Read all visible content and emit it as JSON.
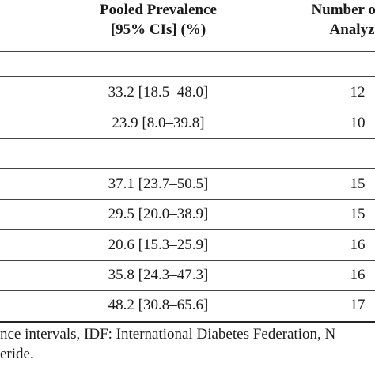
{
  "table": {
    "headers": {
      "prevalence_line1": "Pooled Prevalence",
      "prevalence_line2": "[95% CIs] (%)",
      "number_line1": "Number of S",
      "number_line2": "Analyz"
    },
    "rows": [
      {
        "prevalence": "33.2 [18.5–48.0]",
        "number": "12"
      },
      {
        "prevalence": "23.9 [8.0–39.8]",
        "number": "10"
      },
      {
        "prevalence": "37.1 [23.7–50.5]",
        "number": "15"
      },
      {
        "prevalence": "29.5 [20.0–38.9]",
        "number": "15"
      },
      {
        "prevalence": "20.6 [15.3–25.9]",
        "number": "16"
      },
      {
        "prevalence": "35.8 [24.3–47.3]",
        "number": "16"
      },
      {
        "prevalence": "48.2 [30.8–65.6]",
        "number": "17"
      }
    ]
  },
  "footnote": {
    "line1": "nce intervals, IDF: International Diabetes Federation, N",
    "line2": "eride."
  }
}
